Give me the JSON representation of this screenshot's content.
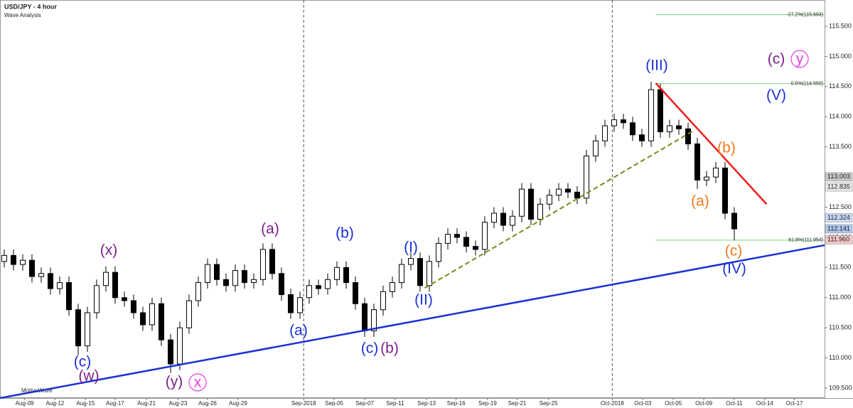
{
  "chart_data": {
    "type": "candlestick",
    "title": "USD/JPY - 4 hour",
    "subtitle": "Wave Analysis",
    "watermark": "MotiveWave",
    "open": [
      111.6,
      111.7,
      111.55,
      111.62,
      111.35,
      111.4,
      111.15,
      111.25,
      110.8,
      110.2,
      110.75,
      111.2,
      111.42,
      111.0,
      110.95,
      110.75,
      110.55,
      110.9,
      110.3,
      109.9,
      110.5,
      110.95,
      111.25,
      111.55,
      111.3,
      111.2,
      111.45,
      111.25,
      111.3,
      111.8,
      111.4,
      111.05,
      110.75,
      111.0,
      111.2,
      111.15,
      111.3,
      111.5,
      111.25,
      110.9,
      110.45,
      110.8,
      111.1,
      111.25,
      111.55,
      111.65,
      111.2,
      111.6,
      111.9,
      112.05,
      112.0,
      111.85,
      111.8,
      112.25,
      112.4,
      112.2,
      112.35,
      112.8,
      112.3,
      112.55,
      112.7,
      112.8,
      112.75,
      112.65,
      113.35,
      113.6,
      113.85,
      113.95,
      113.9,
      113.7,
      113.6,
      114.45,
      113.75,
      113.85,
      113.8,
      113.55,
      112.95,
      113.0,
      113.15,
      112.4
    ],
    "high": [
      111.8,
      111.8,
      111.72,
      111.72,
      111.5,
      111.5,
      111.35,
      111.35,
      110.9,
      110.85,
      111.3,
      111.52,
      111.52,
      111.1,
      111.05,
      110.85,
      111.0,
      111.0,
      110.4,
      110.6,
      111.05,
      111.35,
      111.65,
      111.65,
      111.4,
      111.55,
      111.55,
      111.4,
      111.9,
      111.9,
      111.5,
      111.15,
      111.1,
      111.3,
      111.3,
      111.4,
      111.6,
      111.6,
      111.35,
      111.0,
      110.9,
      111.2,
      111.35,
      111.65,
      111.75,
      111.75,
      111.7,
      112.0,
      112.15,
      112.15,
      112.1,
      111.95,
      112.35,
      112.5,
      112.5,
      112.45,
      112.9,
      112.9,
      112.65,
      112.8,
      112.9,
      112.9,
      112.85,
      113.45,
      113.7,
      113.95,
      114.05,
      114.05,
      114.0,
      113.8,
      114.58,
      114.55,
      113.95,
      113.95,
      113.9,
      113.65,
      113.1,
      113.25,
      113.25,
      112.5
    ],
    "low": [
      111.5,
      111.45,
      111.45,
      111.25,
      111.25,
      111.05,
      111.05,
      110.7,
      110.05,
      110.1,
      110.65,
      111.1,
      110.9,
      110.85,
      110.65,
      110.45,
      110.45,
      110.2,
      109.75,
      109.8,
      110.4,
      110.85,
      111.15,
      111.2,
      111.1,
      111.1,
      111.15,
      111.15,
      111.2,
      111.3,
      110.95,
      110.65,
      110.65,
      110.9,
      111.05,
      111.05,
      111.2,
      111.15,
      110.8,
      110.35,
      110.35,
      110.7,
      111.0,
      111.15,
      111.45,
      111.1,
      111.1,
      111.5,
      111.8,
      111.9,
      111.75,
      111.7,
      111.7,
      112.15,
      112.1,
      112.1,
      112.25,
      112.2,
      112.2,
      112.45,
      112.6,
      112.65,
      112.55,
      112.55,
      113.25,
      113.5,
      113.75,
      113.8,
      113.6,
      113.5,
      113.5,
      113.65,
      113.65,
      113.7,
      113.45,
      112.8,
      112.85,
      112.9,
      112.3,
      111.95
    ],
    "close": [
      111.7,
      111.55,
      111.62,
      111.35,
      111.4,
      111.15,
      111.25,
      110.8,
      110.2,
      110.75,
      111.2,
      111.42,
      111.0,
      110.95,
      110.75,
      110.55,
      110.9,
      110.3,
      109.9,
      110.5,
      110.95,
      111.25,
      111.55,
      111.3,
      111.2,
      111.45,
      111.25,
      111.3,
      111.8,
      111.4,
      111.05,
      110.75,
      111.0,
      111.2,
      111.15,
      111.3,
      111.5,
      111.25,
      110.9,
      110.45,
      110.8,
      111.1,
      111.25,
      111.55,
      111.65,
      111.2,
      111.6,
      111.9,
      112.05,
      112.0,
      111.85,
      111.8,
      112.25,
      112.4,
      112.2,
      112.35,
      112.8,
      112.3,
      112.55,
      112.7,
      112.8,
      112.75,
      112.65,
      113.35,
      113.6,
      113.85,
      113.95,
      113.9,
      113.7,
      113.6,
      114.45,
      113.75,
      113.85,
      113.8,
      113.55,
      112.95,
      113.0,
      113.15,
      112.4,
      112.14
    ],
    "up_color": "#ffffff",
    "down_color": "#000000",
    "xlim": [
      -0.46,
      88.77
    ],
    "ylim": [
      109.335,
      115.877
    ],
    "xticks": [
      {
        "value": 2.2,
        "label": "Aug-09"
      },
      {
        "value": 5.5,
        "label": "Aug-12"
      },
      {
        "value": 8.8,
        "label": "Aug-15"
      },
      {
        "value": 12,
        "label": "Aug-17"
      },
      {
        "value": 15.4,
        "label": "Aug-21"
      },
      {
        "value": 18.8,
        "label": "Aug-23"
      },
      {
        "value": 22,
        "label": "Aug-26"
      },
      {
        "value": 25.3,
        "label": "Aug-29"
      },
      {
        "value": 32.4,
        "label": "Sep-2018"
      },
      {
        "value": 35.7,
        "label": "Sep-05"
      },
      {
        "value": 39,
        "label": "Sep-07"
      },
      {
        "value": 42.3,
        "label": "Sep-11"
      },
      {
        "value": 45.7,
        "label": "Sep-13"
      },
      {
        "value": 48.9,
        "label": "Sep-16"
      },
      {
        "value": 52.3,
        "label": "Sep-19"
      },
      {
        "value": 55.5,
        "label": "Sep-21"
      },
      {
        "value": 58.9,
        "label": "Sep-25"
      },
      {
        "value": 65.8,
        "label": "Oct-2018"
      },
      {
        "value": 69.1,
        "label": "Oct-03"
      },
      {
        "value": 72.4,
        "label": "Oct-05"
      },
      {
        "value": 75.7,
        "label": "Oct-09"
      },
      {
        "value": 79,
        "label": "Oct-11"
      },
      {
        "value": 82.3,
        "label": "Oct-14"
      },
      {
        "value": 85.5,
        "label": "Oct-17"
      }
    ],
    "month_separators": [
      32.4,
      65.8
    ],
    "yticks": [
      {
        "value": 109.5,
        "label": "109.500"
      },
      {
        "value": 110,
        "label": "110.000"
      },
      {
        "value": 110.5,
        "label": "110.500"
      },
      {
        "value": 111,
        "label": "111.000"
      },
      {
        "value": 111.5,
        "label": "111.500"
      },
      {
        "value": 112,
        "label": "112.000"
      },
      {
        "value": 112.5,
        "label": "112.500"
      },
      {
        "value": 113,
        "label": "113.000"
      },
      {
        "value": 113.5,
        "label": "113.500"
      },
      {
        "value": 114,
        "label": "114.000"
      },
      {
        "value": 114.5,
        "label": "114.500"
      },
      {
        "value": 115,
        "label": "115.000"
      },
      {
        "value": 115.5,
        "label": "115.500"
      }
    ],
    "fib_levels": [
      {
        "value": 115.693,
        "label": "-27.2%(115.693)"
      },
      {
        "value": 114.55,
        "label": "0.0%(114.550)"
      },
      {
        "value": 111.954,
        "label": "61.8%(111.954)"
      }
    ],
    "fib_color": "#7fd67f",
    "price_tags": [
      {
        "value": 113.003,
        "label": "113.003",
        "color": "#c8c8c8"
      },
      {
        "value": 112.835,
        "label": "112.835",
        "color": "#e8e8e8"
      },
      {
        "value": 112.324,
        "label": "112.324",
        "color": "#c9daf5"
      },
      {
        "value": 112.141,
        "label": "112.141",
        "color": "#aec6ee"
      },
      {
        "value": 111.96,
        "label": "111.960",
        "color": "#f4c7c7"
      }
    ],
    "trendlines": [
      {
        "color": "#1a2fd6",
        "x": [
          -0.46,
          88.77
        ],
        "y": [
          109.335,
          111.87
        ],
        "dash": false
      },
      {
        "color": "#ee1c1c",
        "x": [
          70.5,
          82.5
        ],
        "y": [
          114.557,
          112.55
        ],
        "dash": false
      },
      {
        "color": "#7a8a1a",
        "x": [
          45.5,
          74.5
        ],
        "y": [
          111.16,
          113.76
        ],
        "dash": true
      }
    ],
    "wave_labels": [
      {
        "text": "(c)",
        "color": "#7b1f8c"
      },
      {
        "text": "y",
        "color": "#e83ce0",
        "circled": true
      },
      {
        "text": "(III)",
        "color": "#1a2fd6"
      },
      {
        "text": "(V)",
        "color": "#1a2fd6"
      },
      {
        "text": "(b)",
        "color": "#f07a1e"
      },
      {
        "text": "(a)",
        "color": "#f07a1e"
      },
      {
        "text": "(c)",
        "color": "#f07a1e"
      },
      {
        "text": "(IV)",
        "color": "#1a2fd6"
      },
      {
        "text": "(a)",
        "color": "#7b1f8c"
      },
      {
        "text": "(b)",
        "color": "#1a2fd6"
      },
      {
        "text": "(I)",
        "color": "#1a2fd6"
      },
      {
        "text": "(II)",
        "color": "#1a2fd6"
      },
      {
        "text": "(a)",
        "color": "#1a2fd6"
      },
      {
        "text": "(c)",
        "color": "#1a2fd6"
      },
      {
        "text": "(b)",
        "color": "#7b1f8c"
      },
      {
        "text": "(x)",
        "color": "#7b1f8c"
      },
      {
        "text": "(c)",
        "color": "#1a2fd6"
      },
      {
        "text": "(w)",
        "color": "#7b1f8c"
      },
      {
        "text": "(y)",
        "color": "#7b1f8c"
      },
      {
        "text": "x",
        "color": "#e83ce0",
        "circled": true
      }
    ]
  }
}
